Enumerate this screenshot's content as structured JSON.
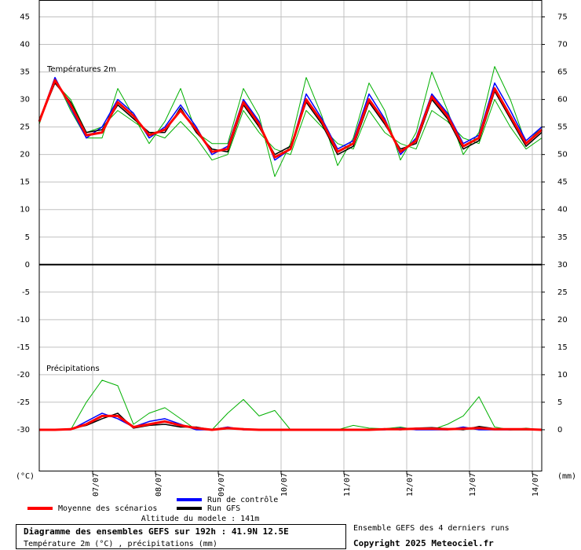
{
  "chart_data": {
    "type": "line",
    "panel_labels": [
      "Températures 2m",
      "Précipitations"
    ],
    "ylabel": "(°C)",
    "y2label": "(mm)",
    "grid": true,
    "x": [
      -0.85,
      -0.6,
      -0.35,
      -0.1,
      0.15,
      0.4,
      0.65,
      0.9,
      1.15,
      1.4,
      1.65,
      1.9,
      2.15,
      2.4,
      2.65,
      2.9,
      3.15,
      3.4,
      3.65,
      3.9,
      4.15,
      4.4,
      4.65,
      4.9,
      5.15,
      5.4,
      5.65,
      5.9,
      6.15,
      6.4,
      6.65,
      6.9,
      7.15
    ],
    "xlim": [
      -0.85,
      7.15
    ],
    "xticks": [
      {
        "value": 0,
        "label": "07/07"
      },
      {
        "value": 1,
        "label": "08/07"
      },
      {
        "value": 2,
        "label": "09/07"
      },
      {
        "value": 3,
        "label": "10/07"
      },
      {
        "value": 4,
        "label": "11/07"
      },
      {
        "value": 5,
        "label": "12/07"
      },
      {
        "value": 6,
        "label": "13/07"
      },
      {
        "value": 7,
        "label": "14/07"
      }
    ],
    "ylim": [
      -37.5,
      48
    ],
    "yticks": [
      45,
      40,
      35,
      30,
      25,
      20,
      15,
      10,
      5,
      0,
      -5,
      -10,
      -15,
      -20,
      -25,
      -30
    ],
    "y2lim": [
      -7.5,
      78
    ],
    "y2ticks": [
      75,
      70,
      65,
      60,
      55,
      50,
      45,
      40,
      35,
      30,
      25,
      20,
      15,
      10,
      5,
      0
    ],
    "series": [
      {
        "color": "#00b000",
        "values": [
          25.5,
          34,
          28,
          23,
          23,
          32,
          27,
          22,
          26,
          32,
          24,
          22,
          22,
          32,
          27,
          16,
          22,
          34,
          27,
          18,
          23,
          33,
          28,
          19,
          24,
          35,
          28,
          20,
          24,
          36,
          30,
          22,
          25
        ]
      },
      {
        "color": "#00b000",
        "values": [
          26.5,
          33,
          30,
          24,
          25,
          28,
          26,
          24,
          23,
          26,
          23,
          19,
          20,
          28,
          24,
          21,
          20,
          28,
          25,
          22,
          21,
          28,
          24,
          22,
          21,
          28,
          26,
          23,
          22,
          30,
          25,
          21,
          23
        ]
      },
      {
        "color": "#00b000",
        "axis": "y2",
        "values": [
          0,
          0,
          0,
          5,
          9,
          8,
          1,
          3,
          4,
          2,
          0,
          0,
          3,
          5.5,
          2.5,
          3.5,
          0,
          0,
          0,
          0,
          0.8,
          0.3,
          0.2,
          0.5,
          0,
          0,
          1,
          2.5,
          6,
          0.5,
          0,
          0.3,
          0
        ]
      },
      {
        "name": "Run de contrôle",
        "color": "#0000ff",
        "values": [
          26,
          34,
          28.5,
          23,
          25,
          30,
          27.5,
          23,
          25,
          29,
          25,
          20,
          21.5,
          30,
          26,
          19,
          21,
          31,
          26.5,
          21,
          22.5,
          31,
          26.5,
          20,
          23,
          31,
          27.5,
          22,
          23.5,
          33,
          28,
          22.5,
          25
        ]
      },
      {
        "name": "Run de contrôle",
        "color": "#0000ff",
        "axis": "y2",
        "values": [
          0,
          0,
          0,
          1.5,
          3,
          2,
          0.5,
          1.5,
          2,
          1,
          0,
          0,
          0.5,
          0,
          0,
          0,
          0,
          0,
          0,
          0,
          0,
          0,
          0,
          0.3,
          0,
          0,
          0,
          0.5,
          0,
          0,
          0,
          0.2,
          0
        ]
      },
      {
        "name": "Run GFS",
        "color": "#000000",
        "values": [
          26,
          33,
          29.5,
          24,
          24.5,
          29,
          26.5,
          24,
          24,
          28.5,
          24,
          21,
          20.5,
          29,
          25,
          20,
          21.5,
          29.5,
          25.5,
          20,
          21.5,
          29.5,
          25.5,
          21,
          22,
          30,
          26.5,
          21,
          22.5,
          31.5,
          26.5,
          21.5,
          24
        ]
      },
      {
        "name": "Run GFS",
        "color": "#000000",
        "axis": "y2",
        "values": [
          0,
          0,
          0.2,
          0.8,
          2,
          3,
          0.3,
          0.8,
          1,
          0.5,
          0.5,
          0,
          0.2,
          0.2,
          0,
          0,
          0,
          0,
          0,
          0,
          0,
          0,
          0.2,
          0,
          0.3,
          0.4,
          0.2,
          0,
          0.6,
          0.2,
          0,
          0,
          0
        ]
      },
      {
        "name": "Moyenne des scénarios",
        "color": "#ff0000",
        "values": [
          26,
          33.5,
          29,
          23.5,
          24,
          29.5,
          27,
          23.5,
          24.5,
          28,
          24.5,
          20.5,
          21,
          29.5,
          25.5,
          19.5,
          21,
          30,
          26,
          20.5,
          22,
          30,
          26,
          20.5,
          22.5,
          30.5,
          27,
          21.5,
          23,
          32,
          27,
          22,
          24.5
        ]
      },
      {
        "name": "Moyenne des scénarios",
        "color": "#ff0000",
        "axis": "y2",
        "values": [
          0,
          0,
          0.1,
          1,
          2.5,
          2.5,
          0.5,
          1,
          1.5,
          0.8,
          0.3,
          0,
          0.3,
          0.1,
          0,
          0,
          0,
          0,
          0,
          0,
          0,
          0,
          0.1,
          0.1,
          0.2,
          0.2,
          0.1,
          0.2,
          0.3,
          0.1,
          0.1,
          0.1,
          0
        ]
      }
    ]
  },
  "footer": {
    "altitude": "Altitude du modele : 141m",
    "title": "Diagramme des ensembles GEFS sur 192h : 41.9N 12.5E",
    "subtitle": "Température 2m (°C) , précipitations (mm)",
    "runs": "Ensemble GEFS des 4 derniers runs",
    "copyright": "Copyright 2025 Meteociel.fr"
  }
}
